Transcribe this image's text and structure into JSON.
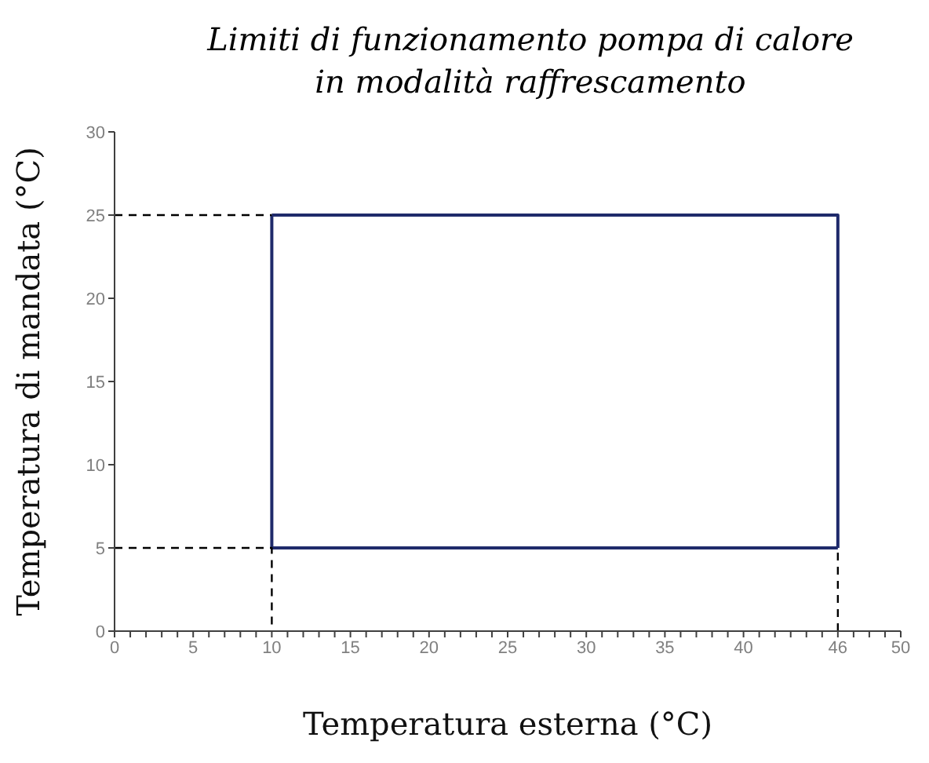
{
  "chart_data": {
    "type": "line",
    "title": "Limiti di funzionamento pompa di calore in modalità raffrescamento",
    "xlabel": "Temperatura esterna (°C)",
    "ylabel": "Temperatura di mandata (°C)",
    "xlim": [
      0,
      50
    ],
    "ylim": [
      0,
      30
    ],
    "xticks": [
      0,
      {
        "value": 1,
        "label": null
      },
      {
        "value": 2,
        "label": null
      },
      {
        "value": 3,
        "label": null
      },
      {
        "value": 4,
        "label": null
      },
      5,
      {
        "value": 6,
        "label": null
      },
      {
        "value": 7,
        "label": null
      },
      {
        "value": 8,
        "label": null
      },
      {
        "value": 9,
        "label": null
      },
      10,
      {
        "value": 11,
        "label": null
      },
      {
        "value": 12,
        "label": null
      },
      {
        "value": 13,
        "label": null
      },
      {
        "value": 14,
        "label": null
      },
      15,
      {
        "value": 16,
        "label": null
      },
      {
        "value": 17,
        "label": null
      },
      {
        "value": 18,
        "label": null
      },
      {
        "value": 19,
        "label": null
      },
      20,
      {
        "value": 21,
        "label": null
      },
      {
        "value": 22,
        "label": null
      },
      {
        "value": 23,
        "label": null
      },
      {
        "value": 24,
        "label": null
      },
      25,
      {
        "value": 26,
        "label": null
      },
      {
        "value": 27,
        "label": null
      },
      {
        "value": 28,
        "label": null
      },
      {
        "value": 29,
        "label": null
      },
      30,
      {
        "value": 31,
        "label": null
      },
      {
        "value": 32,
        "label": null
      },
      {
        "value": 33,
        "label": null
      },
      {
        "value": 34,
        "label": null
      },
      35,
      {
        "value": 36,
        "label": null
      },
      {
        "value": 37,
        "label": null
      },
      {
        "value": 38,
        "label": null
      },
      {
        "value": 39,
        "label": null
      },
      40,
      {
        "value": 41,
        "label": null
      },
      {
        "value": 42,
        "label": null
      },
      {
        "value": 43,
        "label": null
      },
      {
        "value": 44,
        "label": null
      },
      {
        "value": 45,
        "label": null
      },
      46,
      {
        "value": 47,
        "label": null
      },
      {
        "value": 48,
        "label": null
      },
      {
        "value": 49,
        "label": null
      },
      50
    ],
    "yticks": [
      0,
      5,
      10,
      15,
      20,
      25,
      30
    ],
    "grid": false,
    "marker": "none",
    "series": [
      {
        "color": "#1f2a6b",
        "x": [
          10,
          10,
          46
        ],
        "values": [
          25,
          5,
          5
        ],
        "line_style": "solid"
      },
      {
        "color": "#1f2a6b",
        "x": [
          46,
          46,
          10
        ],
        "values": [
          5,
          25,
          25
        ],
        "line_style": "solid"
      },
      {
        "color": "#000000",
        "x": [
          0,
          10
        ],
        "values": [
          25,
          25
        ],
        "line_style": "dashed"
      },
      {
        "color": "#000000",
        "x": [
          0,
          10,
          10
        ],
        "values": [
          5,
          5,
          0
        ],
        "line_style": "dashed"
      },
      {
        "color": "#000000",
        "x": [
          46,
          46
        ],
        "values": [
          0,
          5
        ],
        "line_style": "dashed"
      }
    ]
  }
}
